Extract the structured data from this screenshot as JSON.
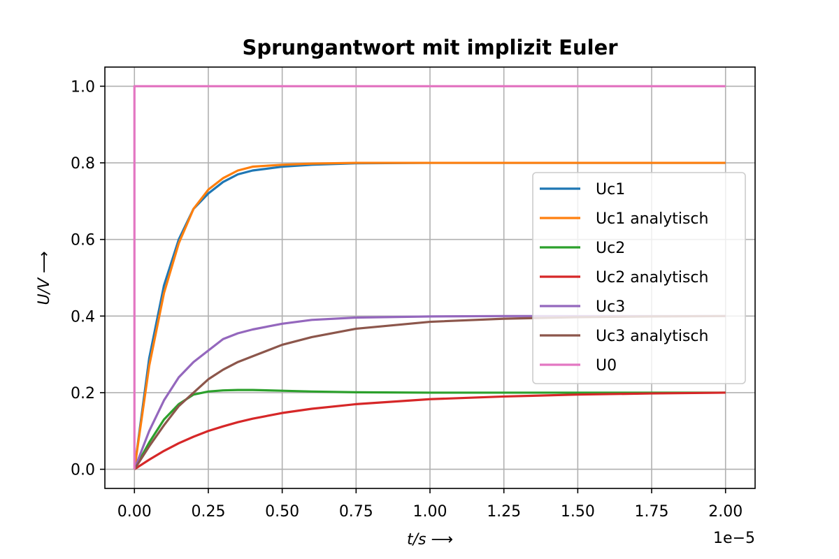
{
  "chart_data": {
    "type": "line",
    "title": "Sprungantwort mit implizit Euler",
    "xlabel": "t/s ⟶",
    "ylabel": "U/V ⟶",
    "x_offset_text": "1e−5",
    "xlim": [
      -0.1,
      2.1
    ],
    "ylim": [
      -0.05,
      1.05
    ],
    "x_ticks": [
      0.0,
      0.25,
      0.5,
      0.75,
      1.0,
      1.25,
      1.5,
      1.75,
      2.0
    ],
    "x_tick_labels": [
      "0.00",
      "0.25",
      "0.50",
      "0.75",
      "1.00",
      "1.25",
      "1.50",
      "1.75",
      "2.00"
    ],
    "y_ticks": [
      0.0,
      0.2,
      0.4,
      0.6,
      0.8,
      1.0
    ],
    "y_tick_labels": [
      "0.0",
      "0.2",
      "0.4",
      "0.6",
      "0.8",
      "1.0"
    ],
    "grid": true,
    "legend_position": "center-right",
    "x": [
      0,
      0.05,
      0.1,
      0.15,
      0.2,
      0.25,
      0.3,
      0.35,
      0.4,
      0.5,
      0.6,
      0.75,
      1.0,
      1.25,
      1.5,
      1.75,
      2.0
    ],
    "series": [
      {
        "name": "Uc1",
        "color": "#1f77b4",
        "values": [
          0,
          0.29,
          0.48,
          0.6,
          0.68,
          0.72,
          0.75,
          0.77,
          0.78,
          0.79,
          0.795,
          0.799,
          0.8,
          0.8,
          0.8,
          0.8,
          0.8
        ]
      },
      {
        "name": "Uc1 analytisch",
        "color": "#ff7f0e",
        "values": [
          0,
          0.27,
          0.46,
          0.59,
          0.68,
          0.73,
          0.76,
          0.78,
          0.79,
          0.795,
          0.798,
          0.8,
          0.8,
          0.8,
          0.8,
          0.8,
          0.8
        ]
      },
      {
        "name": "Uc2",
        "color": "#2ca02c",
        "values": [
          0,
          0.07,
          0.13,
          0.17,
          0.195,
          0.203,
          0.206,
          0.207,
          0.207,
          0.205,
          0.203,
          0.201,
          0.2,
          0.2,
          0.2,
          0.2,
          0.2
        ]
      },
      {
        "name": "Uc2 analytisch",
        "color": "#d62728",
        "values": [
          0,
          0.025,
          0.048,
          0.068,
          0.085,
          0.1,
          0.112,
          0.123,
          0.132,
          0.147,
          0.158,
          0.17,
          0.183,
          0.19,
          0.195,
          0.198,
          0.2
        ]
      },
      {
        "name": "Uc3",
        "color": "#9467bd",
        "values": [
          0,
          0.1,
          0.18,
          0.24,
          0.28,
          0.31,
          0.34,
          0.355,
          0.365,
          0.38,
          0.39,
          0.396,
          0.399,
          0.4,
          0.4,
          0.4,
          0.4
        ]
      },
      {
        "name": "Uc3 analytisch",
        "color": "#8c564b",
        "values": [
          0,
          0.06,
          0.115,
          0.165,
          0.2,
          0.235,
          0.26,
          0.28,
          0.295,
          0.325,
          0.345,
          0.367,
          0.385,
          0.393,
          0.397,
          0.399,
          0.4
        ]
      },
      {
        "name": "U0",
        "color": "#e377c2",
        "values": [
          0,
          1,
          1,
          1,
          1,
          1,
          1,
          1,
          1,
          1,
          1,
          1,
          1,
          1,
          1,
          1,
          1
        ],
        "step_at_start": true
      }
    ]
  }
}
